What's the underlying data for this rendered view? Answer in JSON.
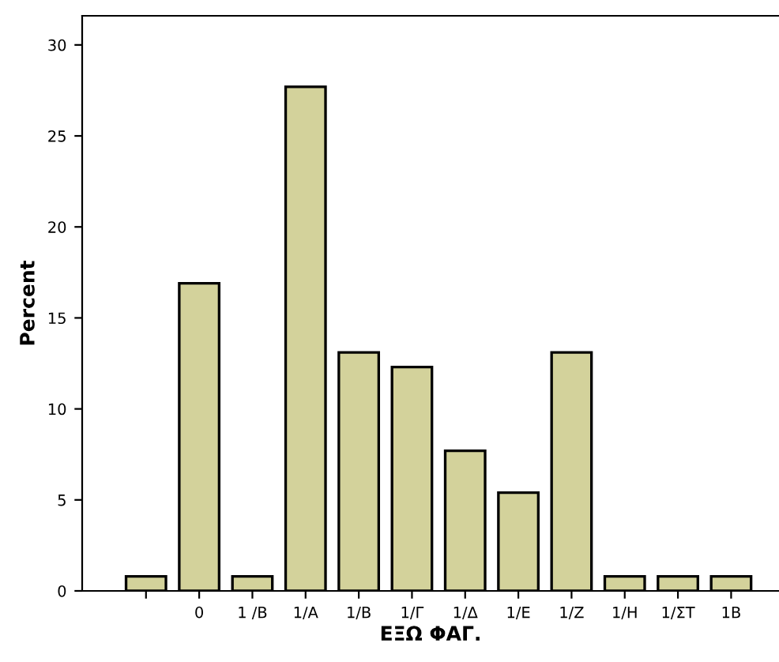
{
  "chart_data": {
    "type": "bar",
    "xlabel": "ΕΞΩ ΦΑΓ.",
    "ylabel": "Percent",
    "categories": [
      null,
      "0",
      "1 /B",
      "1/A",
      "1/B",
      "1/Γ",
      "1/Δ",
      "1/E",
      "1/Z",
      "1/H",
      "1/ΣΤ",
      "1B"
    ],
    "values": [
      0.8,
      16.9,
      0.8,
      27.7,
      13.1,
      12.3,
      7.7,
      5.4,
      13.1,
      0.8,
      0.8,
      0.8
    ],
    "color": "#d3d29b",
    "ylim": [
      0,
      31.6
    ],
    "yticks": [
      0,
      5,
      10,
      15,
      20,
      25,
      30
    ],
    "grid": false
  }
}
